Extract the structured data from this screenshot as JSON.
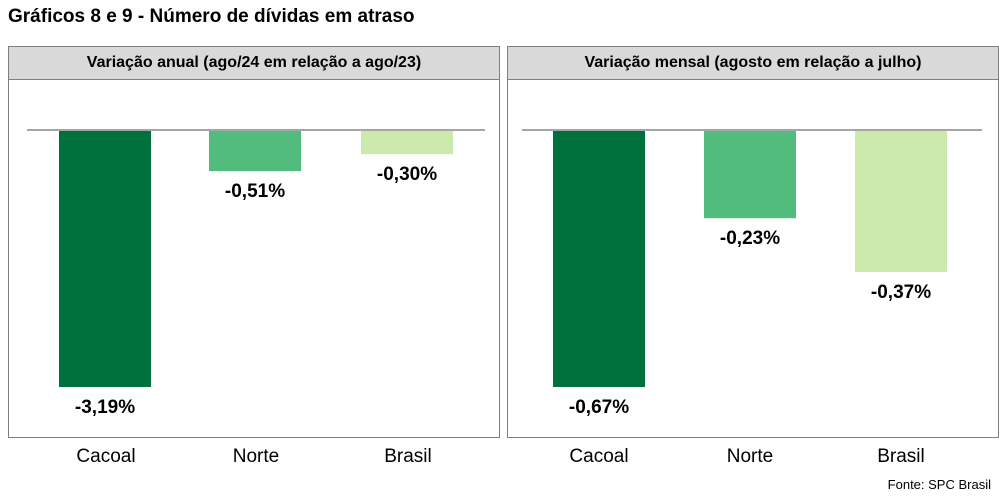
{
  "title": "Gráficos 8 e 9 - Número de dívidas em atraso",
  "source": "Fonte: SPC Brasil",
  "colors": {
    "Cacoal": "#00703c",
    "Norte": "#52bb7e",
    "Brasil": "#cbeaac",
    "axis": "#a6a6a6"
  },
  "chart_data": [
    {
      "type": "bar",
      "title": "Variação anual (ago/24 em relação a ago/23)",
      "categories": [
        "Cacoal",
        "Norte",
        "Brasil"
      ],
      "values": [
        -3.19,
        -0.51,
        -0.3
      ],
      "labels": [
        "-3,19%",
        "-0,51%",
        "-0,30%"
      ],
      "ylim": [
        -3.19,
        0
      ],
      "grid": false,
      "legend": "none"
    },
    {
      "type": "bar",
      "title": "Variação mensal (agosto em relação a julho)",
      "categories": [
        "Cacoal",
        "Norte",
        "Brasil"
      ],
      "values": [
        -0.67,
        -0.23,
        -0.37
      ],
      "labels": [
        "-0,67%",
        "-0,23%",
        "-0,37%"
      ],
      "ylim": [
        -0.67,
        0
      ],
      "grid": false,
      "legend": "none"
    }
  ]
}
